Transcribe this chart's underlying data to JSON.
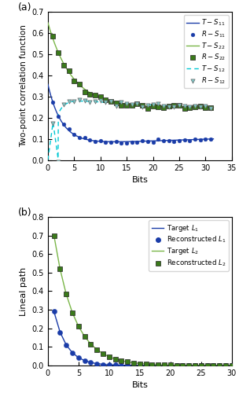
{
  "panel_a": {
    "xlim": [
      0,
      35
    ],
    "ylim": [
      0,
      0.7
    ],
    "xlabel": "Bits",
    "ylabel": "Two-point correlation function",
    "yticks": [
      0.0,
      0.1,
      0.2,
      0.3,
      0.4,
      0.5,
      0.6,
      0.7
    ],
    "xticks": [
      0,
      5,
      10,
      15,
      20,
      25,
      30,
      35
    ],
    "col_blue_dark": "#1a3ca8",
    "col_green_line": "#7ab648",
    "col_cyan": "#00c8d4",
    "col_green_marker": "#3a7a1a",
    "col_cyan_marker": "#80c8c8"
  },
  "panel_b": {
    "xlim": [
      0,
      30
    ],
    "ylim": [
      0,
      0.8
    ],
    "xlabel": "Bits",
    "ylabel": "Lineal path",
    "yticks": [
      0.0,
      0.1,
      0.2,
      0.3,
      0.4,
      0.5,
      0.6,
      0.7,
      0.8
    ],
    "xticks": [
      0,
      5,
      10,
      15,
      20,
      25,
      30
    ],
    "col_blue": "#1a3ca8",
    "col_green_line": "#7ab648",
    "col_green_marker": "#3a7a1a"
  }
}
